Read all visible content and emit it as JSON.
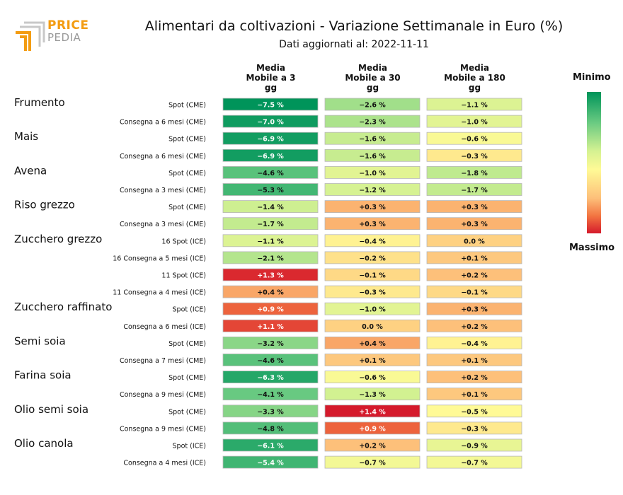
{
  "header": {
    "logo_top": "PRICE",
    "logo_bottom": "PEDIA",
    "title": "Alimentari da coltivazioni - Variazione Settimanale in Euro (%)",
    "subtitle": "Dati aggiornati al: 2022-11-11"
  },
  "columns": [
    [
      "Media",
      "Mobile a 3",
      "gg"
    ],
    [
      "Media",
      "Mobile a 30",
      "gg"
    ],
    [
      "Media",
      "Mobile a 180",
      "gg"
    ]
  ],
  "legend": {
    "min_label": "Minimo",
    "max_label": "Massimo"
  },
  "chart_data": {
    "type": "heatmap",
    "title": "Alimentari da coltivazioni - Variazione Settimanale in Euro (%)",
    "subtitle": "Dati aggiornati al: 2022-11-11",
    "columns": [
      "Media Mobile a 3 gg",
      "Media Mobile a 30 gg",
      "Media Mobile a 180 gg"
    ],
    "unit": "%",
    "colorscale": {
      "min_color": "#00945a",
      "mid_color": "#fffa96",
      "max_color": "#d51a2c"
    },
    "rows": [
      {
        "group": "Frumento",
        "label": "Spot (CME)",
        "values": [
          -7.5,
          -2.6,
          -1.1
        ]
      },
      {
        "group": "",
        "label": "Consegna a 6 mesi (CME)",
        "values": [
          -7.0,
          -2.3,
          -1.0
        ]
      },
      {
        "group": "Mais",
        "label": "Spot (CME)",
        "values": [
          -6.9,
          -1.6,
          -0.6
        ]
      },
      {
        "group": "",
        "label": "Consegna a 6 mesi (CME)",
        "values": [
          -6.9,
          -1.6,
          -0.3
        ]
      },
      {
        "group": "Avena",
        "label": "Spot (CME)",
        "values": [
          -4.6,
          -1.0,
          -1.8
        ]
      },
      {
        "group": "",
        "label": "Consegna a 3 mesi (CME)",
        "values": [
          -5.3,
          -1.2,
          -1.7
        ]
      },
      {
        "group": "Riso grezzo",
        "label": "Spot (CME)",
        "values": [
          -1.4,
          0.3,
          0.3
        ]
      },
      {
        "group": "",
        "label": "Consegna a 3 mesi (CME)",
        "values": [
          -1.7,
          0.3,
          0.3
        ]
      },
      {
        "group": "Zucchero grezzo",
        "label": "16 Spot (ICE)",
        "values": [
          -1.1,
          -0.4,
          0.0
        ]
      },
      {
        "group": "",
        "label": "16 Consegna a 5 mesi (ICE)",
        "values": [
          -2.1,
          -0.2,
          0.1
        ]
      },
      {
        "group": "",
        "label": "11 Spot (ICE)",
        "values": [
          1.3,
          -0.1,
          0.2
        ]
      },
      {
        "group": "",
        "label": "11 Consegna a 4 mesi (ICE)",
        "values": [
          0.4,
          -0.3,
          -0.1
        ]
      },
      {
        "group": "Zucchero raffinato",
        "label": "Spot (ICE)",
        "values": [
          0.9,
          -1.0,
          0.3
        ]
      },
      {
        "group": "",
        "label": "Consegna a 6 mesi (ICE)",
        "values": [
          1.1,
          0.0,
          0.2
        ]
      },
      {
        "group": "Semi soia",
        "label": "Spot (CME)",
        "values": [
          -3.2,
          0.4,
          -0.4
        ]
      },
      {
        "group": "",
        "label": "Consegna a 7 mesi (CME)",
        "values": [
          -4.6,
          0.1,
          0.1
        ]
      },
      {
        "group": "Farina soia",
        "label": "Spot (CME)",
        "values": [
          -6.3,
          -0.6,
          0.2
        ]
      },
      {
        "group": "",
        "label": "Consegna a 9 mesi (CME)",
        "values": [
          -4.1,
          -1.3,
          0.1
        ]
      },
      {
        "group": "Olio semi soia",
        "label": "Spot (CME)",
        "values": [
          -3.3,
          1.4,
          -0.5
        ]
      },
      {
        "group": "",
        "label": "Consegna a 9 mesi (CME)",
        "values": [
          -4.8,
          0.9,
          -0.3
        ]
      },
      {
        "group": "Olio canola",
        "label": "Spot (ICE)",
        "values": [
          -6.1,
          0.2,
          -0.9
        ]
      },
      {
        "group": "",
        "label": "Consegna a 4 mesi (ICE)",
        "values": [
          -5.4,
          -0.7,
          -0.7
        ]
      }
    ]
  }
}
